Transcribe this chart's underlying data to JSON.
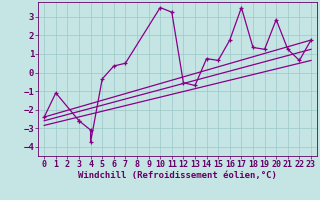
{
  "title": "",
  "xlabel": "Windchill (Refroidissement éolien,°C)",
  "ylabel": "",
  "xlim": [
    -0.5,
    23.5
  ],
  "ylim": [
    -4.5,
    3.8
  ],
  "xticks": [
    0,
    1,
    2,
    3,
    4,
    5,
    6,
    7,
    8,
    9,
    10,
    11,
    12,
    13,
    14,
    15,
    16,
    17,
    18,
    19,
    20,
    21,
    22,
    23
  ],
  "yticks": [
    -4,
    -3,
    -2,
    -1,
    0,
    1,
    2,
    3
  ],
  "background_color": "#c5e5e5",
  "grid_color": "#9cc8c8",
  "line_color": "#880088",
  "font_color": "#660066",
  "font_size": 6.5,
  "tick_font_size": 6.0,
  "line_width": 0.9,
  "marker_size": 3.5,
  "zigzag_x": [
    0,
    1,
    3,
    3,
    4,
    4,
    5,
    6,
    7,
    10,
    11,
    12,
    13,
    14,
    15,
    16,
    17,
    18,
    19,
    20,
    21,
    22,
    23
  ],
  "zigzag_y": [
    -2.4,
    -1.1,
    -2.6,
    -2.6,
    -3.1,
    -3.75,
    -0.35,
    0.35,
    0.5,
    3.5,
    3.25,
    -0.55,
    -0.7,
    0.75,
    0.65,
    1.75,
    3.5,
    1.35,
    1.25,
    2.85,
    1.25,
    0.65,
    1.75
  ],
  "trend_lines": [
    {
      "x0": 0,
      "y0": -2.4,
      "x1": 23,
      "y1": 1.75
    },
    {
      "x0": 0,
      "y0": -2.6,
      "x1": 23,
      "y1": 1.25
    },
    {
      "x0": 0,
      "y0": -2.85,
      "x1": 23,
      "y1": 0.65
    }
  ]
}
